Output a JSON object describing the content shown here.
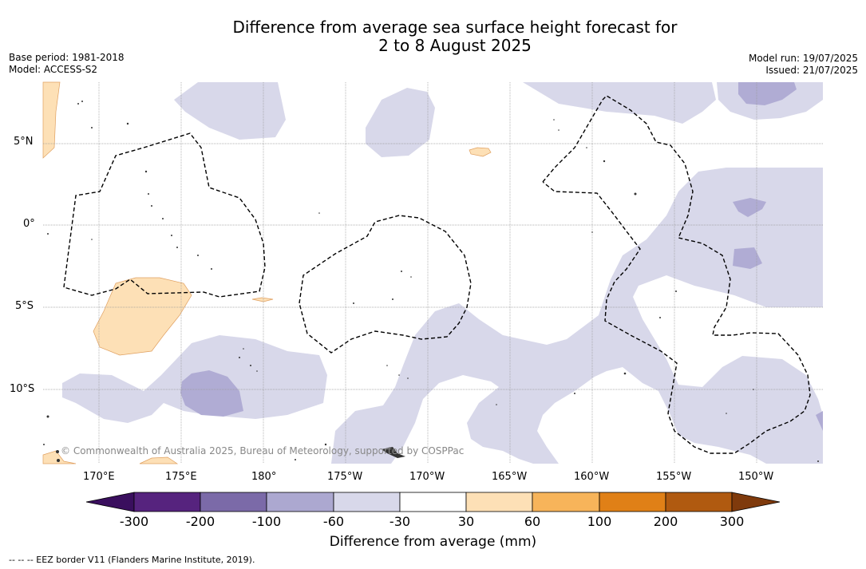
{
  "title": {
    "line1": "Difference from average sea surface height forecast for",
    "line2": "2 to 8 August 2025"
  },
  "meta_left": {
    "base_period": "Base period: 1981-2018",
    "model": "Model: ACCESS-S2"
  },
  "meta_right": {
    "model_run": "Model run: 19/07/2025",
    "issued": "Issued: 21/07/2025"
  },
  "map": {
    "lat_labels": [
      "5°N",
      "0°",
      "5°S",
      "10°S"
    ],
    "lon_labels": [
      "170°E",
      "175°E",
      "180°",
      "175°W",
      "170°W",
      "165°W",
      "160°W",
      "155°W",
      "150°W"
    ],
    "copyright": "© Commonwealth of Australia 2025, Bureau of Meteorology, supported by COSPPac",
    "colors": {
      "light_purple": "#d8d8ea",
      "medium_purple": "#b0acd4",
      "light_orange": "#fde0b6",
      "grid": "#999999"
    }
  },
  "colorbar": {
    "labels": [
      "-300",
      "-200",
      "-100",
      "-60",
      "-30",
      "30",
      "60",
      "100",
      "200",
      "300"
    ],
    "colors": [
      "#3a0f5e",
      "#56237e",
      "#7b6aa8",
      "#aca8d0",
      "#d8d8ea",
      "#ffffff",
      "#fde0b6",
      "#f7b45a",
      "#e08017",
      "#b05a10",
      "#7f3a0c"
    ],
    "title": "Difference from average (mm)"
  },
  "footer": "--  --  -- EEZ border V11 (Flanders Marine Institute, 2019)."
}
